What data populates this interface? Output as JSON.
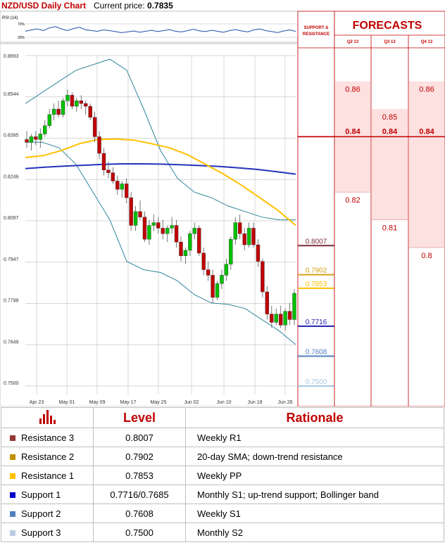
{
  "header": {
    "title": "NZD/USD Daily Chart",
    "current_price_label": "Current price:",
    "current_price": "0.7835"
  },
  "chart_data": {
    "type": "candlestick",
    "title": "NZD/USD Daily Chart",
    "ylim": [
      0.75,
      0.8693
    ],
    "y_ticks": [
      "0.8693",
      "0.8544",
      "0.8395",
      "0.8246",
      "0.8097",
      "0.7947",
      "0.7798",
      "0.7649",
      "0.7500"
    ],
    "x_ticks": [
      "Apr 23",
      "May 01",
      "May 09",
      "May 17",
      "May 25",
      "Jun 02",
      "Jun 10",
      "Jun 18",
      "Jun 26"
    ],
    "rsi": {
      "label": "RSI (14)",
      "levels": [
        "70%",
        "30%"
      ]
    },
    "candles": [
      [
        0.839,
        0.842,
        0.836,
        0.838
      ],
      [
        0.838,
        0.841,
        0.835,
        0.84
      ],
      [
        0.84,
        0.842,
        0.837,
        0.839
      ],
      [
        0.839,
        0.843,
        0.836,
        0.841
      ],
      [
        0.841,
        0.846,
        0.84,
        0.844
      ],
      [
        0.844,
        0.85,
        0.843,
        0.848
      ],
      [
        0.848,
        0.852,
        0.846,
        0.85
      ],
      [
        0.85,
        0.853,
        0.847,
        0.848
      ],
      [
        0.848,
        0.854,
        0.847,
        0.853
      ],
      [
        0.853,
        0.857,
        0.851,
        0.855
      ],
      [
        0.855,
        0.856,
        0.85,
        0.851
      ],
      [
        0.851,
        0.854,
        0.849,
        0.853
      ],
      [
        0.853,
        0.855,
        0.85,
        0.852
      ],
      [
        0.852,
        0.853,
        0.848,
        0.851
      ],
      [
        0.851,
        0.852,
        0.846,
        0.847
      ],
      [
        0.847,
        0.849,
        0.838,
        0.84
      ],
      [
        0.84,
        0.842,
        0.832,
        0.834
      ],
      [
        0.834,
        0.836,
        0.826,
        0.828
      ],
      [
        0.828,
        0.831,
        0.825,
        0.827
      ],
      [
        0.827,
        0.829,
        0.823,
        0.824
      ],
      [
        0.824,
        0.826,
        0.819,
        0.821
      ],
      [
        0.821,
        0.824,
        0.818,
        0.823
      ],
      [
        0.823,
        0.825,
        0.816,
        0.818
      ],
      [
        0.818,
        0.82,
        0.806,
        0.808
      ],
      [
        0.808,
        0.815,
        0.806,
        0.813
      ],
      [
        0.813,
        0.817,
        0.81,
        0.811
      ],
      [
        0.811,
        0.813,
        0.802,
        0.803
      ],
      [
        0.803,
        0.81,
        0.801,
        0.808
      ],
      [
        0.808,
        0.812,
        0.806,
        0.809
      ],
      [
        0.809,
        0.811,
        0.805,
        0.807
      ],
      [
        0.807,
        0.81,
        0.803,
        0.805
      ],
      [
        0.805,
        0.808,
        0.802,
        0.807
      ],
      [
        0.807,
        0.811,
        0.805,
        0.808
      ],
      [
        0.808,
        0.81,
        0.8,
        0.802
      ],
      [
        0.802,
        0.804,
        0.795,
        0.797
      ],
      [
        0.797,
        0.8,
        0.794,
        0.799
      ],
      [
        0.799,
        0.806,
        0.797,
        0.805
      ],
      [
        0.805,
        0.809,
        0.803,
        0.807
      ],
      [
        0.807,
        0.808,
        0.797,
        0.798
      ],
      [
        0.798,
        0.8,
        0.79,
        0.792
      ],
      [
        0.792,
        0.795,
        0.788,
        0.79
      ],
      [
        0.79,
        0.792,
        0.78,
        0.782
      ],
      [
        0.782,
        0.788,
        0.781,
        0.787
      ],
      [
        0.787,
        0.792,
        0.785,
        0.79
      ],
      [
        0.79,
        0.796,
        0.788,
        0.794
      ],
      [
        0.794,
        0.804,
        0.792,
        0.803
      ],
      [
        0.803,
        0.811,
        0.801,
        0.809
      ],
      [
        0.809,
        0.812,
        0.803,
        0.805
      ],
      [
        0.805,
        0.807,
        0.799,
        0.801
      ],
      [
        0.801,
        0.809,
        0.8,
        0.807
      ],
      [
        0.807,
        0.809,
        0.8,
        0.801
      ],
      [
        0.801,
        0.803,
        0.793,
        0.795
      ],
      [
        0.795,
        0.796,
        0.782,
        0.784
      ],
      [
        0.784,
        0.786,
        0.774,
        0.776
      ],
      [
        0.776,
        0.779,
        0.771,
        0.773
      ],
      [
        0.773,
        0.778,
        0.772,
        0.776
      ],
      [
        0.776,
        0.779,
        0.771,
        0.772
      ],
      [
        0.772,
        0.778,
        0.77,
        0.777
      ],
      [
        0.777,
        0.78,
        0.772,
        0.774
      ],
      [
        0.774,
        0.785,
        0.772,
        0.7835
      ]
    ],
    "sma200": [
      0.8285,
      0.829,
      0.8294,
      0.8297,
      0.83,
      0.8302,
      0.8302,
      0.8301,
      0.8299,
      0.8296,
      0.8293,
      0.8288,
      0.8282,
      0.8274,
      0.8265
    ],
    "sma50": [
      0.8325,
      0.8332,
      0.835,
      0.8375,
      0.839,
      0.8392,
      0.8388,
      0.8375,
      0.836,
      0.8335,
      0.83,
      0.8265,
      0.8225,
      0.818,
      0.8135,
      0.808
    ],
    "bollinger_upper": [
      0.852,
      0.856,
      0.86,
      0.864,
      0.866,
      0.868,
      0.864,
      0.85,
      0.835,
      0.825,
      0.82,
      0.818,
      0.815,
      0.813,
      0.811,
      0.81,
      0.81
    ],
    "bollinger_lower": [
      0.838,
      0.838,
      0.836,
      0.83,
      0.82,
      0.81,
      0.795,
      0.792,
      0.791,
      0.788,
      0.783,
      0.78,
      0.7795,
      0.778,
      0.774,
      0.77,
      0.765
    ],
    "level_markers": [
      {
        "label": "0.8007",
        "value": 0.8007,
        "color": "#7b2c3a"
      },
      {
        "label": "0.7902",
        "value": 0.7902,
        "color": "#d4a017"
      },
      {
        "label": "0.7853",
        "value": 0.7853,
        "color": "#ffc000"
      },
      {
        "label": "0.7716",
        "value": 0.7716,
        "color": "#1f1fb4"
      },
      {
        "label": "0.7608",
        "value": 0.7608,
        "color": "#4f81bd"
      },
      {
        "label": "0.7500",
        "value": 0.75,
        "color": "#a6c9e2"
      }
    ],
    "forecasts": {
      "support_resistance_label": "SUPPORT & RESISTANCE",
      "title": "FORECASTS",
      "quarters": [
        {
          "label": "Q2 13",
          "values": [
            "0.86",
            "0.84",
            "0.82"
          ]
        },
        {
          "label": "Q3 13",
          "values": [
            "0.85",
            "0.84",
            "0.81"
          ]
        },
        {
          "label": "Q4 13",
          "values": [
            "0.86",
            "0.84",
            "0.8"
          ]
        }
      ]
    }
  },
  "levels_table": {
    "headers": {
      "level": "Level",
      "rationale": "Rationale"
    },
    "rows": [
      {
        "name": "Resistance 3",
        "value": "0.8007",
        "rationale": "Weekly R1",
        "color": "#943634"
      },
      {
        "name": "Resistance 2",
        "value": "0.7902",
        "rationale": "20-day SMA; down-trend resistance",
        "color": "#c09000"
      },
      {
        "name": "Resistance 1",
        "value": "0.7853",
        "rationale": "Weekly PP",
        "color": "#ffc000"
      },
      {
        "name": "Support 1",
        "value": "0.7716/0.7685",
        "rationale": "Monthly S1; up-trend support; Bollinger band",
        "color": "#0000cc"
      },
      {
        "name": "Support 2",
        "value": "0.7608",
        "rationale": "Weekly S1",
        "color": "#4f81bd"
      },
      {
        "name": "Support 3",
        "value": "0.7500",
        "rationale": "Monthly S2",
        "color": "#b8cce4"
      }
    ]
  }
}
